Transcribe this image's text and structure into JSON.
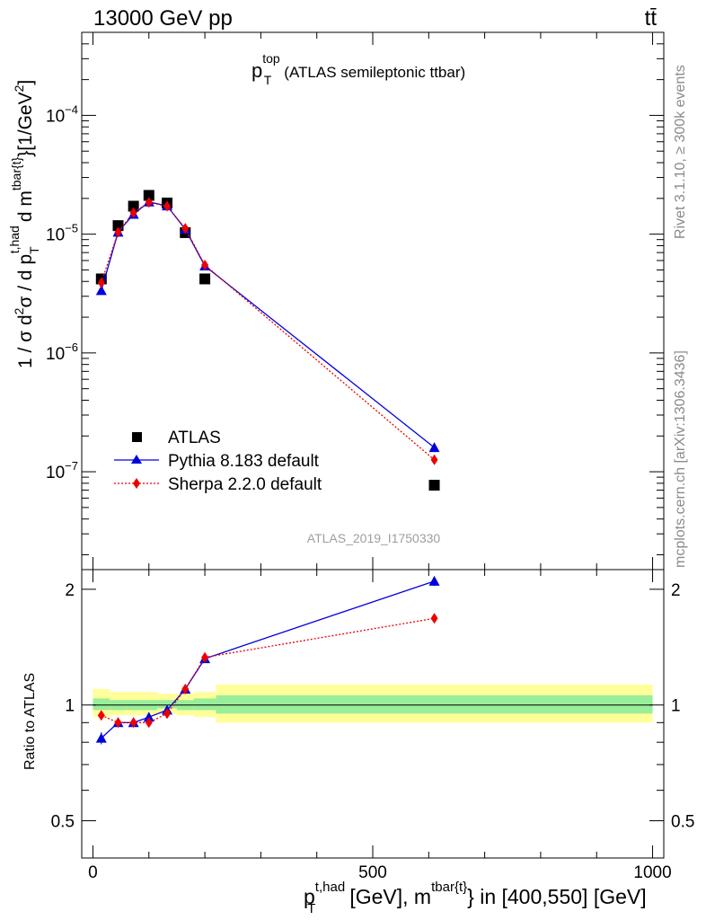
{
  "header": {
    "energy_label": "13000 GeV pp",
    "process_label": "tt̄"
  },
  "side_labels": {
    "rivet": "Rivet 3.1.10, ≥ 300k events",
    "mcplots": "mcplots.cern.ch [arXiv:1306.3436]"
  },
  "colors": {
    "data": "#000000",
    "pythia": "#0000dd",
    "sherpa": "#ee0000",
    "band_inner": "#99ee99",
    "band_outer": "#ffff99"
  },
  "chart_data": {
    "type": "scatter",
    "title": "p_T^top (ATLAS semileptonic ttbar)",
    "title_main": "p",
    "title_sub": "T",
    "title_sup": "top",
    "title_rest": "(ATLAS semileptonic ttbar)",
    "analysis_label": "ATLAS_2019_I1750330",
    "xlim": [
      -20,
      1020
    ],
    "x_ticks": [
      0,
      500,
      1000
    ],
    "x_tick_labels": [
      "0",
      "500",
      "1000"
    ],
    "xlabel": {
      "p": "p",
      "sub": "T",
      "sup": "t,had",
      "mid": "[GeV], m",
      "sup2": "tbar{t}",
      "rest": "} in [400,550] [GeV]"
    },
    "main_panel": {
      "yscale": "log",
      "ylim": [
        1.5e-08,
        0.0005
      ],
      "ylabel": "1 / σ d²σ / d p_T^{t,had} d m^{tbar{t}} [1/GeV²]",
      "ylabel_a": "1 / σ d",
      "ylabel_sup1": "2",
      "ylabel_b": "σ / d p",
      "ylabel_sub1": "T",
      "ylabel_sup_had": "t,had",
      "ylabel_c": "d m",
      "ylabel_sup_tt": "tbar{t}",
      "ylabel_d": "}[1/GeV",
      "ylabel_sup2": "2",
      "ylabel_e": "]",
      "y_ticks": [
        1e-07,
        1e-06,
        1e-05,
        0.0001
      ],
      "y_tick_base": [
        "10",
        "10",
        "10",
        "10"
      ],
      "y_tick_exp": [
        "−7",
        "−6",
        "−5",
        "−4"
      ]
    },
    "ratio_panel": {
      "ylabel": "Ratio to ATLAS",
      "ylim": [
        0.4,
        2.25
      ],
      "y_ticks": [
        0.5,
        1,
        2
      ],
      "y_tick_labels": [
        "0.5",
        "1",
        "2"
      ]
    },
    "bins": [
      [
        0,
        30
      ],
      [
        30,
        60
      ],
      [
        60,
        85
      ],
      [
        85,
        115
      ],
      [
        115,
        150
      ],
      [
        150,
        180
      ],
      [
        180,
        220
      ],
      [
        220,
        1000
      ]
    ],
    "legend": [
      "ATLAS",
      "Pythia 8.183 default",
      "Sherpa 2.2.0 default"
    ],
    "series": [
      {
        "name": "ATLAS",
        "x": [
          15,
          45,
          72.5,
          100,
          132.5,
          165,
          200,
          610
        ],
        "values": [
          4.2e-06,
          1.18e-05,
          1.72e-05,
          2.12e-05,
          1.83e-05,
          1.03e-05,
          4.2e-06,
          7.7e-08
        ],
        "band_inner": [
          [
            0.97,
            1.04
          ],
          [
            0.97,
            1.03
          ],
          [
            0.97,
            1.03
          ],
          [
            0.97,
            1.03
          ],
          [
            0.98,
            1.03
          ],
          [
            0.97,
            1.03
          ],
          [
            0.97,
            1.04
          ],
          [
            0.95,
            1.06
          ]
        ],
        "band_outer": [
          [
            0.93,
            1.1
          ],
          [
            0.94,
            1.08
          ],
          [
            0.94,
            1.08
          ],
          [
            0.94,
            1.08
          ],
          [
            0.95,
            1.07
          ],
          [
            0.94,
            1.07
          ],
          [
            0.93,
            1.08
          ],
          [
            0.9,
            1.13
          ]
        ]
      },
      {
        "name": "Pythia 8.183 default",
        "x": [
          15,
          45,
          72.5,
          100,
          132.5,
          165,
          200,
          610
        ],
        "values": [
          3.35e-06,
          1.04e-05,
          1.47e-05,
          1.87e-05,
          1.73e-05,
          1.1e-05,
          5.4e-06,
          1.6e-07
        ],
        "ratio": [
          0.82,
          0.9,
          0.9,
          0.93,
          0.97,
          1.1,
          1.32,
          2.1
        ],
        "ratio_err": [
          0.03,
          0.02,
          0.02,
          0.02,
          0.02,
          0.02,
          0.03,
          0.06
        ]
      },
      {
        "name": "Sherpa 2.2.0 default",
        "x": [
          15,
          45,
          72.5,
          100,
          132.5,
          165,
          200,
          610
        ],
        "values": [
          3.9e-06,
          1.04e-05,
          1.52e-05,
          1.85e-05,
          1.72e-05,
          1.12e-05,
          5.5e-06,
          1.26e-07
        ],
        "ratio": [
          0.94,
          0.9,
          0.9,
          0.9,
          0.95,
          1.1,
          1.33,
          1.68
        ],
        "ratio_err": [
          0.02,
          0.02,
          0.02,
          0.02,
          0.02,
          0.02,
          0.02,
          0.03
        ]
      }
    ]
  }
}
